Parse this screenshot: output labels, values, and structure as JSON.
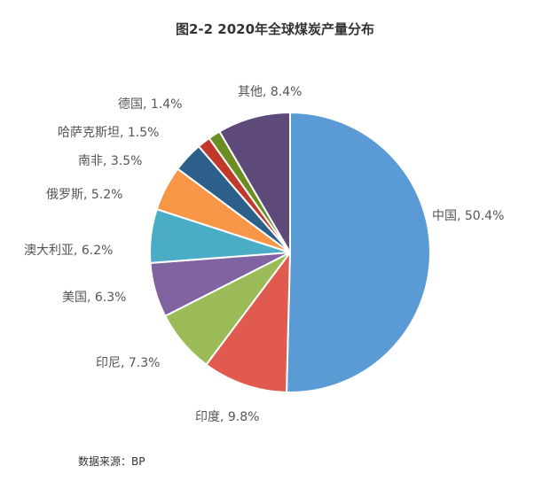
{
  "chart_data": {
    "type": "pie",
    "title": "图2-2  2020年全球煤炭产量分布",
    "slices": [
      {
        "label": "中国, 50.4%",
        "name": "中国",
        "value": 50.4,
        "color": "#5b9bd5"
      },
      {
        "label": "印度, 9.8%",
        "name": "印度",
        "value": 9.8,
        "color": "#e05a4f"
      },
      {
        "label": "印尼, 7.3%",
        "name": "印尼",
        "value": 7.3,
        "color": "#9bbb59"
      },
      {
        "label": "美国, 6.3%",
        "name": "美国",
        "value": 6.3,
        "color": "#8064a2"
      },
      {
        "label": "澳大利亚, 6.2%",
        "name": "澳大利亚",
        "value": 6.2,
        "color": "#4bacc6"
      },
      {
        "label": "俄罗斯, 5.2%",
        "name": "俄罗斯",
        "value": 5.2,
        "color": "#f79646"
      },
      {
        "label": "南非, 3.5%",
        "name": "南非",
        "value": 3.5,
        "color": "#2c5f8a"
      },
      {
        "label": "哈萨克斯坦, 1.5%",
        "name": "哈萨克斯坦",
        "value": 1.5,
        "color": "#c0392b"
      },
      {
        "label": "德国, 1.4%",
        "name": "德国",
        "value": 1.4,
        "color": "#6b8e23"
      },
      {
        "label": "其他, 8.4%",
        "name": "其他",
        "value": 8.4,
        "color": "#5d4a7a"
      }
    ]
  },
  "source": "数据来源：BP"
}
